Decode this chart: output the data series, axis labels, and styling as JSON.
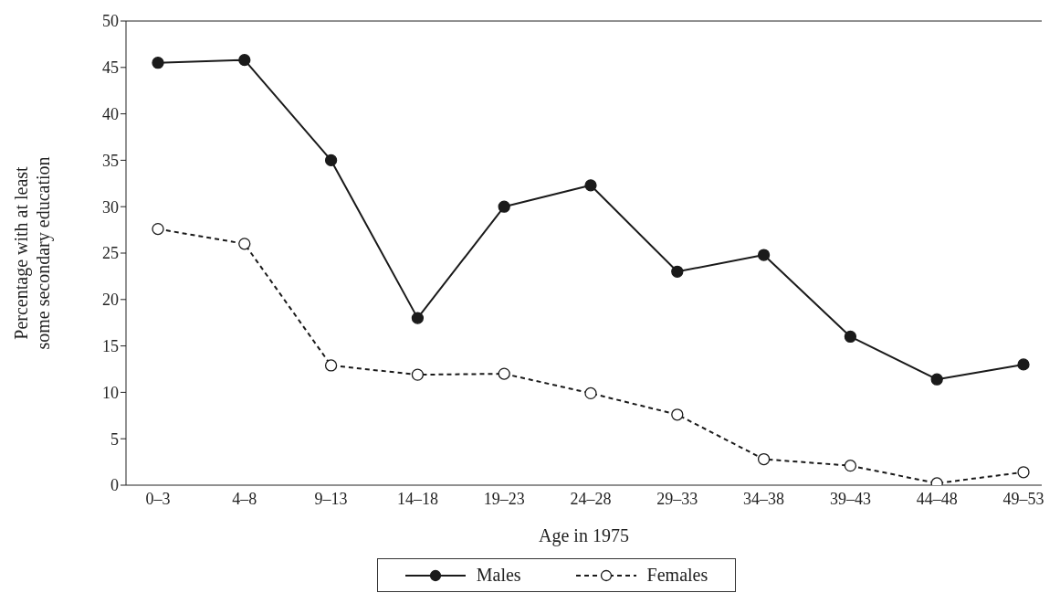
{
  "chart_data": {
    "type": "line",
    "xlabel": "Age in 1975",
    "ylabel": "Percentage with at least some secondary education",
    "categories": [
      "0–3",
      "4–8",
      "9–13",
      "14–18",
      "19–23",
      "24–28",
      "29–33",
      "34–38",
      "39–43",
      "44–48",
      "49–53"
    ],
    "series": [
      {
        "name": "Males",
        "color": "#1a1a1a",
        "line_style": "solid",
        "values": [
          45.5,
          45.8,
          35,
          18,
          30,
          32.3,
          23,
          24.8,
          16,
          11.4,
          13
        ]
      },
      {
        "name": "Females",
        "color": "#1a1a1a",
        "line_style": "dashed",
        "values": [
          27.6,
          26,
          12.9,
          11.9,
          12,
          9.9,
          7.6,
          2.8,
          2.1,
          0.2,
          1.4
        ]
      }
    ],
    "ylim": [
      0,
      50
    ],
    "yticks": [
      0,
      5,
      10,
      15,
      20,
      25,
      30,
      35,
      40,
      45,
      50
    ],
    "grid": false,
    "legend": "bottom",
    "marker": "circle"
  }
}
